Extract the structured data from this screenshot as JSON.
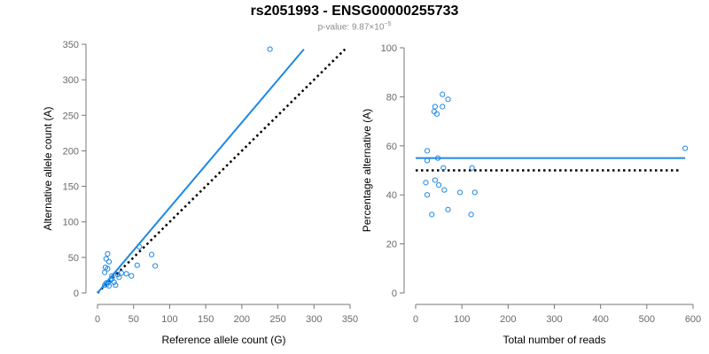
{
  "header": {
    "title": "rs2051993 - ENSG00000255733",
    "pvalue_prefix": "p-value: 9.87×10",
    "pvalue_exponent": "−5"
  },
  "colors": {
    "accent": "#1e88e5",
    "reference_line": "#000000",
    "axis": "#777777"
  },
  "chart_data": [
    {
      "type": "scatter",
      "xlabel": "Reference allele count (G)",
      "ylabel": "Alternative allele count (A)",
      "xlim": [
        0,
        350
      ],
      "ylim": [
        0,
        350
      ],
      "xticks": [
        0,
        50,
        100,
        150,
        200,
        250,
        300,
        350
      ],
      "yticks": [
        0,
        50,
        100,
        150,
        200,
        250,
        300,
        350
      ],
      "points": [
        [
          239,
          343
        ],
        [
          14,
          55
        ],
        [
          12,
          48
        ],
        [
          16,
          44
        ],
        [
          11,
          36
        ],
        [
          14,
          34
        ],
        [
          10,
          29
        ],
        [
          58,
          65
        ],
        [
          75,
          54
        ],
        [
          80,
          38
        ],
        [
          55,
          39
        ],
        [
          47,
          24
        ],
        [
          33,
          28
        ],
        [
          40,
          27
        ],
        [
          30,
          22
        ],
        [
          28,
          26
        ],
        [
          20,
          24
        ],
        [
          23,
          15
        ],
        [
          25,
          11
        ],
        [
          18,
          18
        ],
        [
          15,
          15
        ],
        [
          13,
          12
        ],
        [
          10,
          11
        ],
        [
          16,
          10
        ],
        [
          12,
          14
        ],
        [
          20,
          20
        ]
      ],
      "fit_line": {
        "x": [
          0,
          286
        ],
        "y": [
          0,
          343
        ],
        "style": "solid"
      },
      "reference_line": {
        "x": [
          0,
          343
        ],
        "y": [
          0,
          343
        ],
        "style": "dotted"
      },
      "grid": false
    },
    {
      "type": "scatter",
      "xlabel": "Total number of reads",
      "ylabel": "Percentage alternative (A)",
      "xlim": [
        0,
        600
      ],
      "ylim": [
        0,
        100
      ],
      "xticks": [
        0,
        100,
        200,
        300,
        400,
        500,
        600
      ],
      "yticks": [
        0,
        20,
        40,
        60,
        80,
        100
      ],
      "points": [
        [
          583,
          59
        ],
        [
          58,
          81
        ],
        [
          70,
          79
        ],
        [
          42,
          76
        ],
        [
          58,
          76
        ],
        [
          40,
          74
        ],
        [
          46,
          73
        ],
        [
          25,
          58
        ],
        [
          48,
          55
        ],
        [
          25,
          54
        ],
        [
          60,
          51
        ],
        [
          122,
          51
        ],
        [
          42,
          46
        ],
        [
          22,
          45
        ],
        [
          50,
          44
        ],
        [
          62,
          42
        ],
        [
          96,
          41
        ],
        [
          128,
          41
        ],
        [
          25,
          40
        ],
        [
          70,
          34
        ],
        [
          120,
          32
        ],
        [
          35,
          32
        ]
      ],
      "fit_line": {
        "x": [
          0,
          583
        ],
        "y": [
          55,
          55
        ],
        "style": "solid"
      },
      "reference_line": {
        "x": [
          0,
          573
        ],
        "y": [
          50,
          50
        ],
        "style": "dotted"
      },
      "grid": false
    }
  ]
}
